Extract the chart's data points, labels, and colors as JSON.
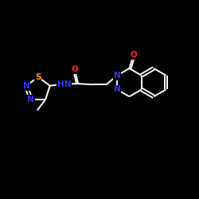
{
  "bg_color": "#000000",
  "bond_color": "#ffffff",
  "atom_colors": {
    "O": "#ff2222",
    "N": "#3333ff",
    "S": "#ffa500",
    "C": "#ffffff"
  },
  "bond_width": 1.4,
  "font_size": 7.5,
  "figsize": [
    2.5,
    2.5
  ],
  "dpi": 100,
  "xlim": [
    0,
    12
  ],
  "ylim": [
    0,
    10
  ]
}
